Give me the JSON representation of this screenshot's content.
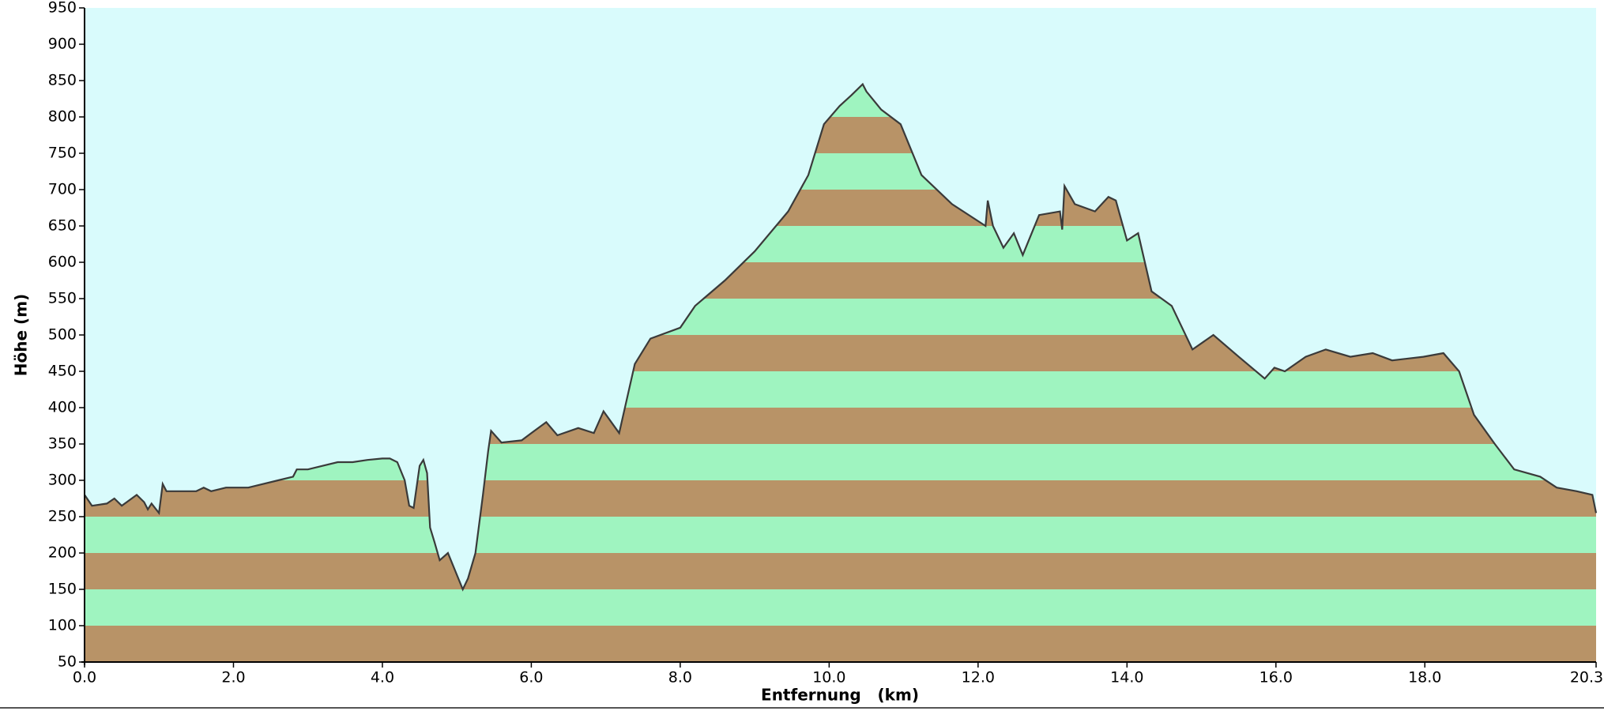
{
  "chart_data": {
    "type": "area",
    "xlabel": "Entfernung   (km)",
    "ylabel": "Höhe (m)",
    "x": [
      0.0,
      0.1,
      0.3,
      0.4,
      0.5,
      0.7,
      0.8,
      0.85,
      0.9,
      1.0,
      1.05,
      1.1,
      1.3,
      1.5,
      1.6,
      1.7,
      1.9,
      2.2,
      2.4,
      2.6,
      2.8,
      2.85,
      3.0,
      3.2,
      3.4,
      3.6,
      3.8,
      4.0,
      4.1,
      4.2,
      4.3,
      4.36,
      4.42,
      4.5,
      4.55,
      4.6,
      4.64,
      4.7,
      4.77,
      4.88,
      4.98,
      5.08,
      5.15,
      5.25,
      5.35,
      5.42,
      5.46,
      5.6,
      5.87,
      6.0,
      6.2,
      6.35,
      6.63,
      6.84,
      6.97,
      7.18,
      7.39,
      7.6,
      8.0,
      8.2,
      8.6,
      9.0,
      9.45,
      9.72,
      9.93,
      10.14,
      10.3,
      10.45,
      10.5,
      10.7,
      10.96,
      11.24,
      11.65,
      12.1,
      12.13,
      12.2,
      12.34,
      12.48,
      12.6,
      12.82,
      13.1,
      13.13,
      13.16,
      13.3,
      13.57,
      13.75,
      13.85,
      14.0,
      14.15,
      14.33,
      14.6,
      14.88,
      15.16,
      15.5,
      15.85,
      15.98,
      16.12,
      16.4,
      16.67,
      17.0,
      17.3,
      17.56,
      17.98,
      18.25,
      18.46,
      18.66,
      18.94,
      19.2,
      19.55,
      19.77,
      20.04,
      20.25,
      20.3
    ],
    "values": [
      280,
      265,
      268,
      275,
      265,
      280,
      270,
      260,
      268,
      255,
      295,
      285,
      285,
      285,
      290,
      285,
      290,
      290,
      295,
      300,
      305,
      315,
      315,
      320,
      325,
      325,
      328,
      330,
      330,
      325,
      300,
      265,
      262,
      320,
      328,
      310,
      235,
      215,
      190,
      200,
      175,
      150,
      165,
      200,
      280,
      340,
      368,
      352,
      355,
      365,
      380,
      362,
      372,
      365,
      395,
      365,
      460,
      495,
      510,
      540,
      575,
      615,
      670,
      720,
      790,
      815,
      830,
      845,
      835,
      810,
      790,
      720,
      680,
      650,
      685,
      650,
      620,
      640,
      610,
      665,
      670,
      645,
      705,
      680,
      670,
      690,
      685,
      630,
      640,
      560,
      540,
      480,
      500,
      470,
      440,
      455,
      450,
      470,
      480,
      470,
      475,
      465,
      470,
      475,
      450,
      390,
      350,
      315,
      305,
      290,
      285,
      280,
      255
    ],
    "xlim": [
      0,
      20.3
    ],
    "xticks": [
      {
        "value": 0,
        "label": "0.0"
      },
      {
        "value": 2,
        "label": "2.0"
      },
      {
        "value": 4,
        "label": "4.0"
      },
      {
        "value": 6,
        "label": "6.0"
      },
      {
        "value": 8,
        "label": "8.0"
      },
      {
        "value": 10,
        "label": "10.0"
      },
      {
        "value": 12,
        "label": "12.0"
      },
      {
        "value": 14,
        "label": "14.0"
      },
      {
        "value": 16,
        "label": "16.0"
      },
      {
        "value": 18,
        "label": "18.0"
      },
      20.3
    ],
    "ylim": [
      50,
      950
    ],
    "yticks": [
      50,
      100,
      150,
      200,
      250,
      300,
      350,
      400,
      450,
      500,
      550,
      600,
      650,
      700,
      750,
      800,
      850,
      900,
      950
    ],
    "color": "#3a3a3a",
    "band_colors": [
      "#b89367",
      "#9ff4c0"
    ],
    "background": "#d9fbfc"
  }
}
